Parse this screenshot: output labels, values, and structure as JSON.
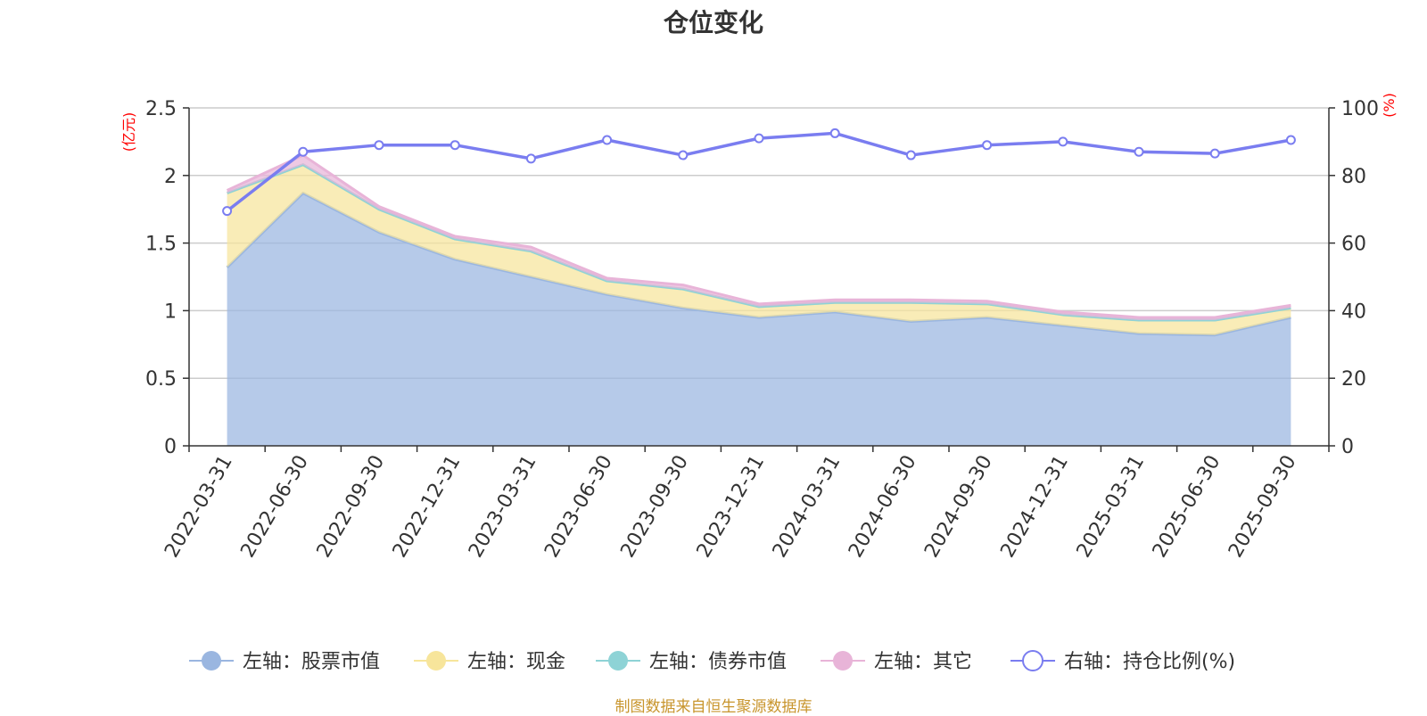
{
  "chart_data": {
    "type": "area",
    "title": "仓位变化",
    "left_axis_unit": "(亿元)",
    "right_axis_unit": "(%)",
    "left_ylim": [
      0,
      2.5
    ],
    "left_ticks": [
      "0",
      "0.5",
      "1",
      "1.5",
      "2",
      "2.5"
    ],
    "right_ylim": [
      0,
      100
    ],
    "right_ticks": [
      "0",
      "20",
      "40",
      "60",
      "80",
      "100"
    ],
    "categories": [
      "2022-03-31",
      "2022-06-30",
      "2022-09-30",
      "2022-12-31",
      "2023-03-31",
      "2023-06-30",
      "2023-09-30",
      "2023-12-31",
      "2024-03-31",
      "2024-06-30",
      "2024-09-30",
      "2024-12-31",
      "2025-03-31",
      "2025-06-30",
      "2025-09-30"
    ],
    "stacked": true,
    "series": [
      {
        "name": "左轴：股票市值",
        "axis": "left",
        "color": "#9ab6e0",
        "values": [
          1.32,
          1.87,
          1.58,
          1.38,
          1.25,
          1.12,
          1.02,
          0.95,
          0.99,
          0.92,
          0.95,
          0.89,
          0.83,
          0.82,
          0.95
        ]
      },
      {
        "name": "左轴：现金",
        "axis": "left",
        "color": "#f7e59b",
        "values": [
          0.55,
          0.21,
          0.17,
          0.15,
          0.19,
          0.1,
          0.14,
          0.08,
          0.07,
          0.14,
          0.1,
          0.08,
          0.1,
          0.11,
          0.07
        ]
      },
      {
        "name": "左轴：债券市值",
        "axis": "left",
        "color": "#8ed3d6",
        "values": [
          0,
          0,
          0,
          0,
          0,
          0,
          0,
          0,
          0,
          0,
          0,
          0,
          0,
          0,
          0
        ]
      },
      {
        "name": "左轴：其它",
        "axis": "left",
        "color": "#e8b4d8",
        "values": [
          0.02,
          0.07,
          0.02,
          0.02,
          0.03,
          0.02,
          0.03,
          0.02,
          0.02,
          0.02,
          0.02,
          0.02,
          0.02,
          0.02,
          0.02
        ]
      },
      {
        "name": "右轴：持仓比例(%)",
        "axis": "right",
        "color": "#7a7df0",
        "values": [
          69.5,
          87.0,
          89.0,
          89.0,
          85.0,
          90.5,
          86.0,
          91.0,
          92.5,
          86.0,
          89.0,
          90.0,
          87.0,
          86.5,
          90.5
        ]
      }
    ]
  },
  "source_note": "制图数据来自恒生聚源数据库"
}
